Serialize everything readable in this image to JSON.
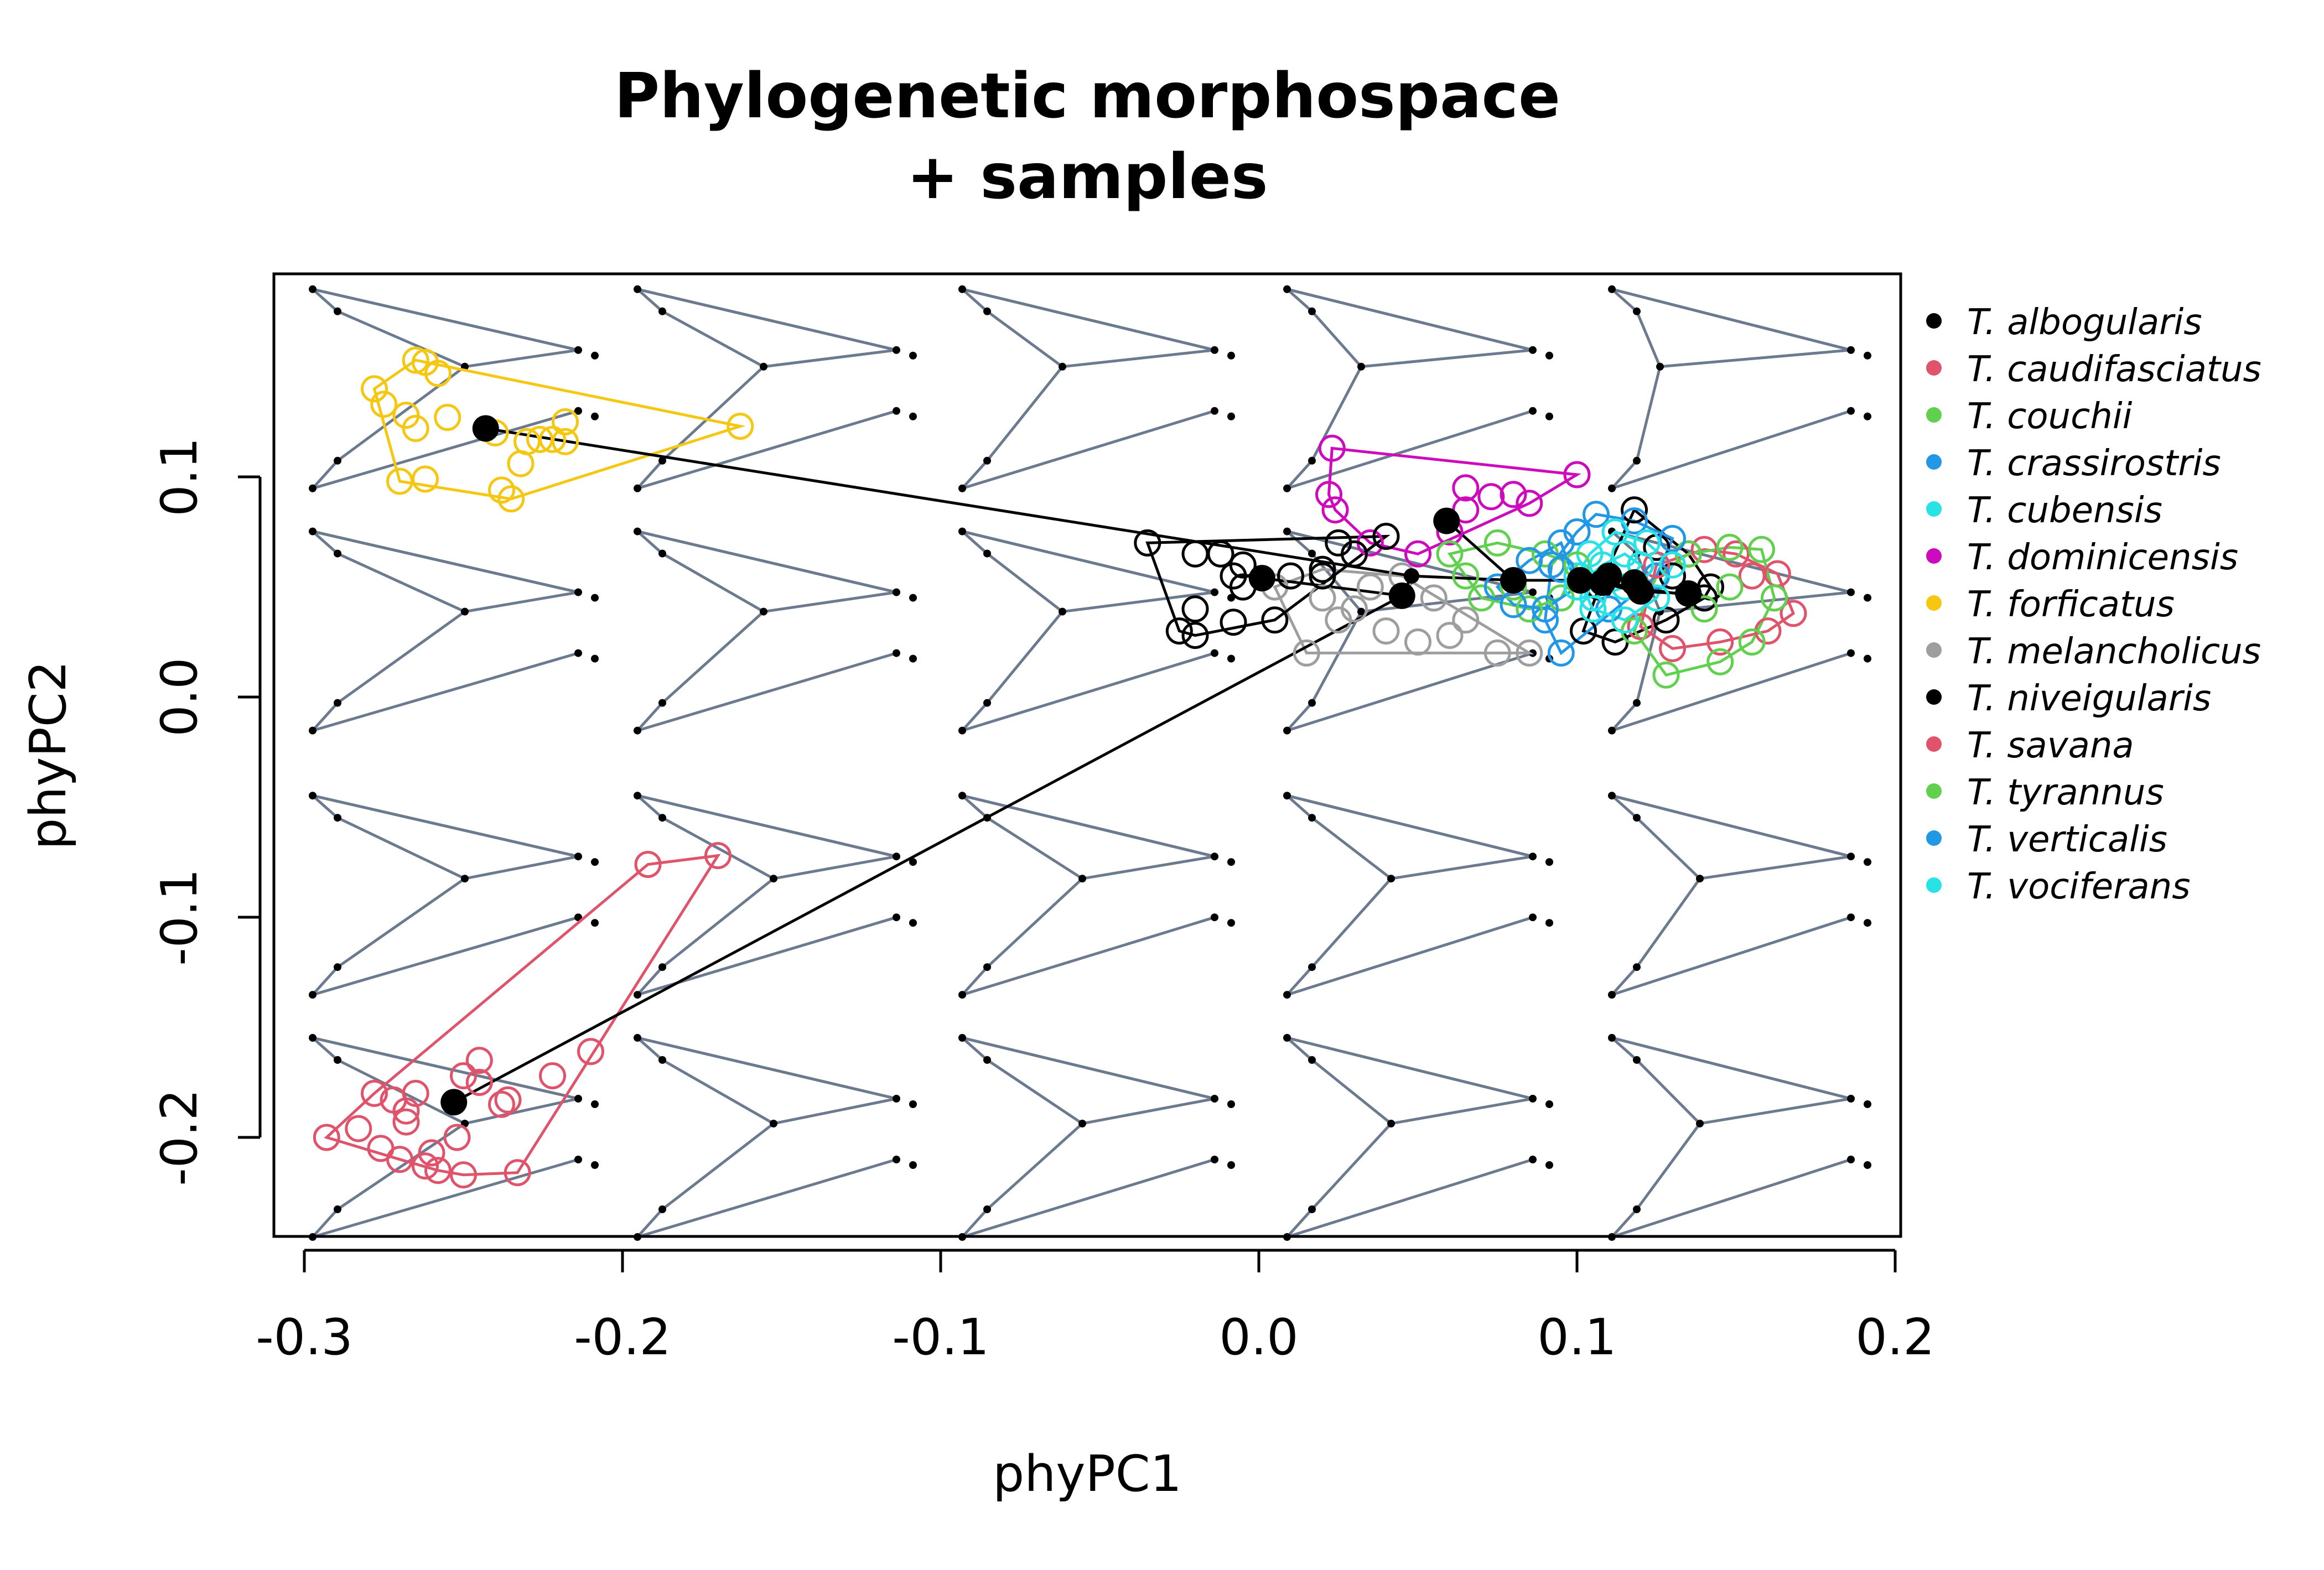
{
  "chart_data": {
    "type": "scatter",
    "title_lines": [
      "Phylogenetic morphospace",
      "+ samples"
    ],
    "xlabel": "phyPC1",
    "ylabel": "phyPC2",
    "xlim": [
      -0.3,
      0.2
    ],
    "ylim": [
      -0.25,
      0.19
    ],
    "xticks": [
      -0.3,
      -0.2,
      -0.1,
      0.0,
      0.1,
      0.2
    ],
    "xtick_labels": [
      "-0.3",
      "-0.2",
      "-0.1",
      "0.0",
      "0.1",
      "0.2"
    ],
    "yticks": [
      -0.2,
      -0.1,
      0.0,
      0.1
    ],
    "ytick_labels": [
      "-0.2",
      "-0.1",
      "0.0",
      "0.1"
    ],
    "grid": false,
    "legend_position": "right",
    "background_shapes": {
      "color": "#6b7a8f",
      "grid_x": [
        -0.24,
        -0.14,
        -0.04,
        0.06,
        0.16
      ],
      "grid_y": [
        0.14,
        0.03,
        -0.09,
        -0.2
      ]
    },
    "tree_color": "#000000",
    "tree_edges": [
      [
        [
          -0.243,
          0.122
        ],
        [
          0.048,
          0.055
        ]
      ],
      [
        [
          0.048,
          0.055
        ],
        [
          0.08,
          0.053
        ]
      ],
      [
        [
          0.08,
          0.053
        ],
        [
          0.101,
          0.053
        ]
      ],
      [
        [
          0.101,
          0.053
        ],
        [
          0.108,
          0.052
        ]
      ],
      [
        [
          0.108,
          0.052
        ],
        [
          0.118,
          0.048
        ]
      ],
      [
        [
          0.118,
          0.048
        ],
        [
          0.135,
          0.047
        ]
      ],
      [
        [
          0.101,
          0.053
        ],
        [
          0.12,
          0.049
        ]
      ],
      [
        [
          0.108,
          0.052
        ],
        [
          0.136,
          0.046
        ]
      ],
      [
        [
          0.08,
          0.053
        ],
        [
          0.059,
          0.08
        ]
      ],
      [
        [
          0.048,
          0.055
        ],
        [
          0.045,
          0.046
        ]
      ],
      [
        [
          0.045,
          0.046
        ],
        [
          0.001,
          0.054
        ]
      ],
      [
        [
          -0.253,
          -0.184
        ],
        [
          0.045,
          0.046
        ]
      ]
    ],
    "tree_nodes": [
      [
        0.048,
        0.055
      ],
      [
        0.08,
        0.053
      ],
      [
        0.101,
        0.053
      ],
      [
        0.108,
        0.052
      ],
      [
        0.118,
        0.048
      ],
      [
        0.045,
        0.046
      ]
    ],
    "series": [
      {
        "name": "T. albogularis",
        "color": "#000000",
        "mean": [
          0.135,
          0.047
        ],
        "points": [
          [
            0.118,
            0.085
          ],
          [
            0.125,
            0.068
          ],
          [
            0.13,
            0.055
          ],
          [
            0.14,
            0.045
          ],
          [
            0.128,
            0.035
          ],
          [
            0.112,
            0.025
          ],
          [
            0.102,
            0.03
          ],
          [
            0.107,
            0.05
          ],
          [
            0.12,
            0.06
          ],
          [
            0.135,
            0.065
          ],
          [
            0.142,
            0.05
          ]
        ]
      },
      {
        "name": "T. caudifasciatus",
        "color": "#df536b",
        "mean": [
          0.12,
          0.048
        ],
        "points": [
          [
            0.14,
            0.067
          ],
          [
            0.155,
            0.055
          ],
          [
            0.168,
            0.038
          ],
          [
            0.16,
            0.03
          ],
          [
            0.145,
            0.025
          ],
          [
            0.13,
            0.022
          ],
          [
            0.12,
            0.032
          ],
          [
            0.125,
            0.06
          ],
          [
            0.15,
            0.065
          ],
          [
            0.163,
            0.056
          ]
        ]
      },
      {
        "name": "T. couchii",
        "color": "#61d04f",
        "mean": [
          0.118,
          0.052
        ],
        "points": [
          [
            0.148,
            0.068
          ],
          [
            0.158,
            0.067
          ],
          [
            0.162,
            0.045
          ],
          [
            0.155,
            0.025
          ],
          [
            0.145,
            0.016
          ],
          [
            0.128,
            0.01
          ],
          [
            0.118,
            0.03
          ],
          [
            0.125,
            0.055
          ],
          [
            0.14,
            0.04
          ],
          [
            0.135,
            0.065
          ],
          [
            0.148,
            0.05
          ]
        ]
      },
      {
        "name": "T. crassirostris",
        "color": "#2297e6",
        "mean": [
          0.108,
          0.052
        ],
        "points": [
          [
            0.106,
            0.083
          ],
          [
            0.118,
            0.08
          ],
          [
            0.13,
            0.072
          ],
          [
            0.125,
            0.055
          ],
          [
            0.11,
            0.04
          ],
          [
            0.095,
            0.02
          ],
          [
            0.09,
            0.035
          ],
          [
            0.092,
            0.06
          ],
          [
            0.1,
            0.075
          ]
        ]
      },
      {
        "name": "T. cubensis",
        "color": "#28e2e5",
        "mean": [
          0.11,
          0.055
        ],
        "points": [
          [
            0.112,
            0.075
          ],
          [
            0.122,
            0.07
          ],
          [
            0.13,
            0.06
          ],
          [
            0.125,
            0.045
          ],
          [
            0.115,
            0.035
          ],
          [
            0.105,
            0.04
          ],
          [
            0.1,
            0.055
          ],
          [
            0.104,
            0.065
          ]
        ]
      },
      {
        "name": "T. dominicensis",
        "color": "#cd0bbc",
        "mean": [
          0.059,
          0.08
        ],
        "points": [
          [
            0.023,
            0.113
          ],
          [
            0.1,
            0.101
          ],
          [
            0.073,
            0.091
          ],
          [
            0.065,
            0.085
          ],
          [
            0.065,
            0.095
          ],
          [
            0.08,
            0.092
          ],
          [
            0.085,
            0.088
          ],
          [
            0.05,
            0.065
          ],
          [
            0.035,
            0.07
          ],
          [
            0.024,
            0.085
          ],
          [
            0.022,
            0.092
          ],
          [
            0.06,
            0.075
          ]
        ]
      },
      {
        "name": "T. forficatus",
        "color": "#f5c710",
        "mean": [
          -0.243,
          0.122
        ],
        "points": [
          [
            -0.278,
            0.14
          ],
          [
            -0.265,
            0.153
          ],
          [
            -0.262,
            0.152
          ],
          [
            -0.258,
            0.147
          ],
          [
            -0.275,
            0.133
          ],
          [
            -0.268,
            0.128
          ],
          [
            -0.255,
            0.127
          ],
          [
            -0.265,
            0.122
          ],
          [
            -0.27,
            0.098
          ],
          [
            -0.262,
            0.099
          ],
          [
            -0.235,
            0.09
          ],
          [
            -0.238,
            0.094
          ],
          [
            -0.232,
            0.106
          ],
          [
            -0.23,
            0.116
          ],
          [
            -0.226,
            0.117
          ],
          [
            -0.222,
            0.117
          ],
          [
            -0.218,
            0.116
          ],
          [
            -0.218,
            0.125
          ],
          [
            -0.163,
            0.123
          ],
          [
            -0.24,
            0.12
          ]
        ]
      },
      {
        "name": "T. melancholicus",
        "color": "#9e9e9e",
        "mean": [
          0.045,
          0.046
        ],
        "points": [
          [
            0.005,
            0.05
          ],
          [
            0.02,
            0.045
          ],
          [
            0.03,
            0.04
          ],
          [
            0.04,
            0.03
          ],
          [
            0.05,
            0.025
          ],
          [
            0.06,
            0.028
          ],
          [
            0.075,
            0.02
          ],
          [
            0.085,
            0.02
          ],
          [
            0.015,
            0.02
          ],
          [
            0.025,
            0.035
          ],
          [
            0.035,
            0.05
          ],
          [
            0.045,
            0.055
          ],
          [
            0.055,
            0.045
          ],
          [
            0.065,
            0.035
          ],
          [
            0.02,
            0.058
          ]
        ]
      },
      {
        "name": "T. niveigularis",
        "color": "#000000",
        "mean": [
          0.001,
          0.054
        ],
        "points": [
          [
            -0.035,
            0.07
          ],
          [
            -0.02,
            0.065
          ],
          [
            -0.012,
            0.065
          ],
          [
            -0.008,
            0.055
          ],
          [
            -0.005,
            0.05
          ],
          [
            0.01,
            0.055
          ],
          [
            0.02,
            0.055
          ],
          [
            0.025,
            0.07
          ],
          [
            0.04,
            0.073
          ],
          [
            -0.02,
            0.04
          ],
          [
            -0.025,
            0.03
          ],
          [
            -0.02,
            0.028
          ],
          [
            -0.008,
            0.034
          ],
          [
            0.005,
            0.035
          ],
          [
            0.02,
            0.058
          ],
          [
            0.03,
            0.065
          ],
          [
            -0.005,
            0.06
          ]
        ]
      },
      {
        "name": "T. savana",
        "color": "#df536b",
        "mean": [
          -0.253,
          -0.184
        ],
        "points": [
          [
            -0.293,
            -0.2
          ],
          [
            -0.283,
            -0.196
          ],
          [
            -0.278,
            -0.18
          ],
          [
            -0.272,
            -0.183
          ],
          [
            -0.268,
            -0.188
          ],
          [
            -0.265,
            -0.18
          ],
          [
            -0.276,
            -0.205
          ],
          [
            -0.27,
            -0.21
          ],
          [
            -0.262,
            -0.213
          ],
          [
            -0.26,
            -0.207
          ],
          [
            -0.258,
            -0.215
          ],
          [
            -0.25,
            -0.217
          ],
          [
            -0.252,
            -0.2
          ],
          [
            -0.25,
            -0.172
          ],
          [
            -0.245,
            -0.165
          ],
          [
            -0.245,
            -0.175
          ],
          [
            -0.238,
            -0.185
          ],
          [
            -0.236,
            -0.183
          ],
          [
            -0.233,
            -0.216
          ],
          [
            -0.222,
            -0.172
          ],
          [
            -0.21,
            -0.161
          ],
          [
            -0.192,
            -0.076
          ],
          [
            -0.17,
            -0.072
          ],
          [
            -0.268,
            -0.193
          ]
        ]
      },
      {
        "name": "T. tyrannus",
        "color": "#61d04f",
        "mean": [
          0.101,
          0.053
        ],
        "points": [
          [
            0.06,
            0.065
          ],
          [
            0.075,
            0.07
          ],
          [
            0.09,
            0.065
          ],
          [
            0.1,
            0.06
          ],
          [
            0.095,
            0.045
          ],
          [
            0.085,
            0.04
          ],
          [
            0.07,
            0.045
          ],
          [
            0.065,
            0.055
          ],
          [
            0.08,
            0.05
          ]
        ]
      },
      {
        "name": "T. verticalis",
        "color": "#2297e6",
        "mean": [
          0.08,
          0.053
        ],
        "points": [
          [
            0.085,
            0.062
          ],
          [
            0.095,
            0.058
          ],
          [
            0.1,
            0.05
          ],
          [
            0.09,
            0.04
          ],
          [
            0.08,
            0.042
          ],
          [
            0.075,
            0.05
          ],
          [
            0.095,
            0.07
          ]
        ]
      },
      {
        "name": "T. vociferans",
        "color": "#28e2e5",
        "mean": [
          0.108,
          0.052
        ],
        "points": [
          [
            0.115,
            0.065
          ],
          [
            0.12,
            0.06
          ],
          [
            0.115,
            0.05
          ],
          [
            0.105,
            0.045
          ],
          [
            0.1,
            0.05
          ],
          [
            0.108,
            0.06
          ]
        ]
      }
    ]
  }
}
